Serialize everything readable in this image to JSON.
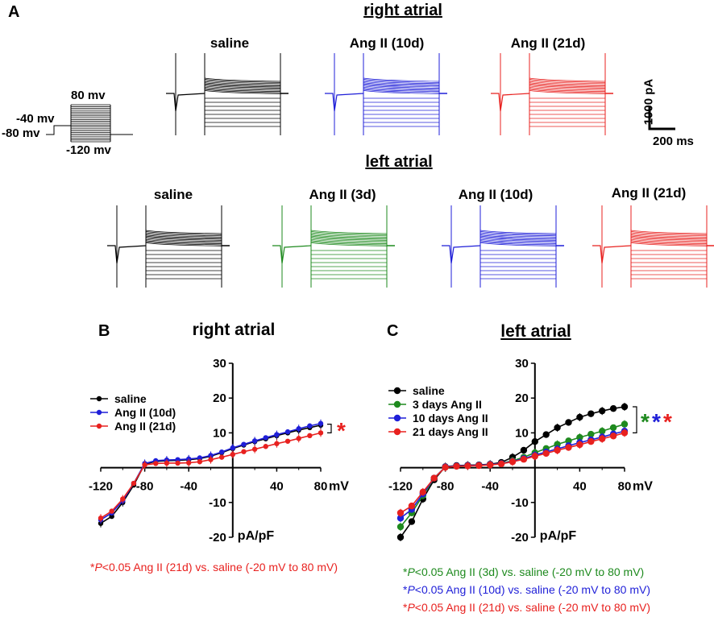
{
  "panel_a": {
    "letter": "A",
    "right_title": "right atrial",
    "left_title": "left atrial",
    "protocol_labels": {
      "v_top": "80 mv",
      "v_hold": "-40 mv",
      "v_base": "-80 mv",
      "v_bottom": "-120 mv"
    },
    "scale_bar": {
      "current": "1000 pA",
      "time": "200 ms"
    },
    "right_traces": [
      {
        "label": "saline",
        "color": "#000000"
      },
      {
        "label": "Ang II (10d)",
        "color": "#1f1fd8"
      },
      {
        "label": "Ang II (21d)",
        "color": "#e8211f"
      }
    ],
    "left_traces": [
      {
        "label": "saline",
        "color": "#000000"
      },
      {
        "label": "Ang II (3d)",
        "color": "#1e8a1e"
      },
      {
        "label": "Ang II (10d)",
        "color": "#1f1fd8"
      },
      {
        "label": "Ang II (21d)",
        "color": "#e8211f"
      }
    ]
  },
  "chart_data": [
    {
      "panel": "B",
      "type": "line",
      "title": "right atrial",
      "xlabel": "mV",
      "ylabel": "pA/pF",
      "xlim": [
        -120,
        80
      ],
      "ylim": [
        -20,
        30
      ],
      "xticks": [
        "-120",
        "-80",
        "-40",
        "40",
        "80"
      ],
      "yticks": [
        "-20",
        "-10",
        "10",
        "20",
        "30"
      ],
      "x": [
        -120,
        -110,
        -100,
        -90,
        -80,
        -70,
        -60,
        -50,
        -40,
        -30,
        -20,
        -10,
        0,
        10,
        20,
        30,
        40,
        50,
        60,
        70,
        80
      ],
      "series": [
        {
          "name": "saline",
          "color": "#000000",
          "values": [
            -16,
            -14,
            -10,
            -5,
            1.0,
            1.8,
            2.0,
            2.1,
            2.3,
            2.6,
            3.3,
            4.3,
            5.5,
            6.5,
            7.5,
            8.3,
            9.2,
            10.0,
            10.8,
            11.5,
            12.2
          ]
        },
        {
          "name": "Ang II (10d)",
          "color": "#1f1fd8",
          "values": [
            -15,
            -13,
            -9.5,
            -4.5,
            1.2,
            2.0,
            2.2,
            2.3,
            2.5,
            2.8,
            3.5,
            4.5,
            5.7,
            6.7,
            7.7,
            8.6,
            9.5,
            10.3,
            11.2,
            12.0,
            12.7
          ]
        },
        {
          "name": "Ang II (21d)",
          "color": "#e8211f",
          "values": [
            -14.5,
            -12.5,
            -9,
            -4.5,
            0.8,
            1.2,
            1.3,
            1.3,
            1.4,
            1.7,
            2.3,
            3.0,
            3.8,
            4.6,
            5.3,
            6.1,
            6.9,
            7.6,
            8.4,
            9.2,
            10.0
          ]
        }
      ],
      "legend": "top-left",
      "significance": "*",
      "note": {
        "star": "*",
        "p": "P",
        "text": "<0.05 Ang II (21d) vs. saline (-20 mV to 80 mV)",
        "color": "#e8211f"
      }
    },
    {
      "panel": "C",
      "type": "line",
      "title": "left atrial",
      "xlabel": "mV",
      "ylabel": "pA/pF",
      "xlim": [
        -120,
        80
      ],
      "ylim": [
        -20,
        30
      ],
      "xticks": [
        "-120",
        "-80",
        "-40",
        "40",
        "80"
      ],
      "yticks": [
        "-20",
        "-10",
        "10",
        "20",
        "30"
      ],
      "x": [
        -120,
        -110,
        -100,
        -90,
        -80,
        -70,
        -60,
        -50,
        -40,
        -30,
        -20,
        -10,
        0,
        10,
        20,
        30,
        40,
        50,
        60,
        70,
        80
      ],
      "series": [
        {
          "name": "saline",
          "color": "#000000",
          "values": [
            -20,
            -15.5,
            -9,
            -3.5,
            0.3,
            0.6,
            0.7,
            0.8,
            1.0,
            1.5,
            3.0,
            5.0,
            7.5,
            9.5,
            11.5,
            13.0,
            14.5,
            15.5,
            16.3,
            17.0,
            17.5
          ]
        },
        {
          "name": "3 days Ang II",
          "color": "#1e8a1e",
          "values": [
            -17,
            -13,
            -8,
            -3,
            0.2,
            0.5,
            0.6,
            0.7,
            0.9,
            1.2,
            2.0,
            3.0,
            4.3,
            5.5,
            6.7,
            7.7,
            8.7,
            9.6,
            10.5,
            11.5,
            12.5
          ]
        },
        {
          "name": "10 days Ang II",
          "color": "#1f1fd8",
          "values": [
            -14.5,
            -12,
            -7.5,
            -3,
            0.2,
            0.5,
            0.6,
            0.7,
            0.9,
            1.2,
            1.8,
            2.6,
            3.6,
            4.5,
            5.4,
            6.3,
            7.2,
            8.0,
            8.8,
            9.7,
            10.5
          ]
        },
        {
          "name": "21 days Ang II",
          "color": "#e8211f",
          "values": [
            -13,
            -11,
            -7,
            -3,
            0.1,
            0.4,
            0.5,
            0.6,
            0.8,
            1.1,
            1.7,
            2.4,
            3.3,
            4.1,
            5.0,
            5.8,
            6.6,
            7.5,
            8.3,
            9.1,
            10.0
          ]
        }
      ],
      "legend": "top-left",
      "significance_stars": [
        {
          "star": "*",
          "color": "#1e8a1e"
        },
        {
          "star": "*",
          "color": "#1f1fd8"
        },
        {
          "star": "*",
          "color": "#e8211f"
        }
      ],
      "notes": [
        {
          "star": "*",
          "p": "P",
          "text": "<0.05 Ang II (3d) vs. saline (-20 mV to 80 mV)",
          "color": "#1e8a1e"
        },
        {
          "star": "*",
          "p": "P",
          "text": "<0.05 Ang II (10d) vs. saline (-20 mV to 80 mV)",
          "color": "#1f1fd8"
        },
        {
          "star": "*",
          "p": "P",
          "text": "<0.05 Ang II (21d) vs. saline (-20 mV to 80 mV)",
          "color": "#e8211f"
        }
      ]
    }
  ]
}
